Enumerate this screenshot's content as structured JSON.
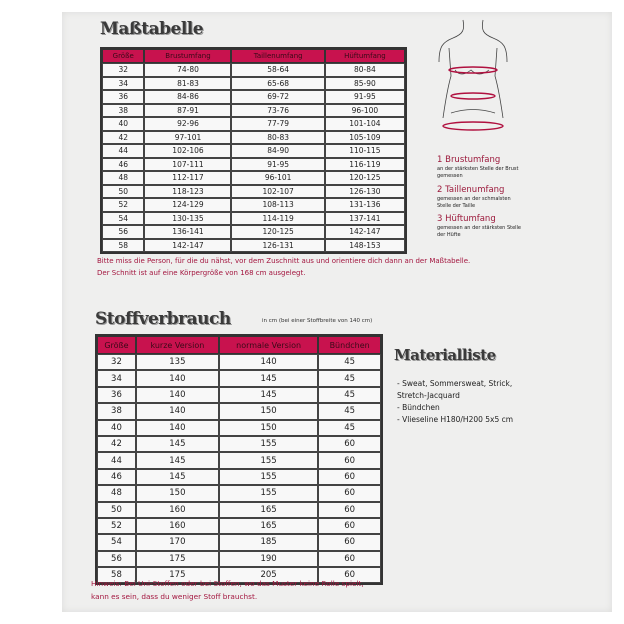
{
  "size_table": {
    "title": "Maßtabelle",
    "headers": [
      "Größe",
      "Brustumfang",
      "Taillenumfang",
      "Hüftumfang"
    ],
    "rows": [
      [
        "32",
        "74-80",
        "58-64",
        "80-84"
      ],
      [
        "34",
        "81-83",
        "65-68",
        "85-90"
      ],
      [
        "36",
        "84-86",
        "69-72",
        "91-95"
      ],
      [
        "38",
        "87-91",
        "73-76",
        "96-100"
      ],
      [
        "40",
        "92-96",
        "77-79",
        "101-104"
      ],
      [
        "42",
        "97-101",
        "80-83",
        "105-109"
      ],
      [
        "44",
        "102-106",
        "84-90",
        "110-115"
      ],
      [
        "46",
        "107-111",
        "91-95",
        "116-119"
      ],
      [
        "48",
        "112-117",
        "96-101",
        "120-125"
      ],
      [
        "50",
        "118-123",
        "102-107",
        "126-130"
      ],
      [
        "52",
        "124-129",
        "108-113",
        "131-136"
      ],
      [
        "54",
        "130-135",
        "114-119",
        "137-141"
      ],
      [
        "56",
        "136-141",
        "120-125",
        "142-147"
      ],
      [
        "58",
        "142-147",
        "126-131",
        "148-153"
      ]
    ],
    "note1": "Bitte miss die Person, für die du nähst, vor dem Zuschnitt aus und orientiere dich dann an der Maßtabelle.",
    "note2": "Der Schnitt ist auf eine Körpergröße von 168 cm ausgelegt."
  },
  "fabric_table": {
    "title": "Stoffverbrauch",
    "subtitle": "in cm (bei einer Stoffbreite von 140 cm)",
    "headers": [
      "Größe",
      "kurze Version",
      "normale Version",
      "Bündchen"
    ],
    "rows": [
      [
        "32",
        "135",
        "140",
        "45"
      ],
      [
        "34",
        "140",
        "145",
        "45"
      ],
      [
        "36",
        "140",
        "145",
        "45"
      ],
      [
        "38",
        "140",
        "150",
        "45"
      ],
      [
        "40",
        "140",
        "150",
        "45"
      ],
      [
        "42",
        "145",
        "155",
        "60"
      ],
      [
        "44",
        "145",
        "155",
        "60"
      ],
      [
        "46",
        "145",
        "155",
        "60"
      ],
      [
        "48",
        "150",
        "155",
        "60"
      ],
      [
        "50",
        "160",
        "165",
        "60"
      ],
      [
        "52",
        "160",
        "165",
        "60"
      ],
      [
        "54",
        "170",
        "185",
        "60"
      ],
      [
        "56",
        "175",
        "190",
        "60"
      ],
      [
        "58",
        "175",
        "205",
        "60"
      ]
    ],
    "hint1": "Hinweis: Bei Uni-Stoffen oder bei Stoffen, wo das Muster keine Rolle spielt,",
    "hint2": "kann es sein, dass du weniger Stoff brauchst."
  },
  "measurements": [
    {
      "title": "1 Brustumfang",
      "desc": "an der stärksten Stelle der Brust gemessen"
    },
    {
      "title": "2 Taillenumfang",
      "desc": "gemessen an der schmalsten Stelle der Taille"
    },
    {
      "title": "3 Hüftumfang",
      "desc": "gemessen an der stärksten Stelle der Hüfte"
    }
  ],
  "materials": {
    "title": "Materialliste",
    "items": [
      "- Sweat, Sommersweat, Strick,",
      "Stretch-Jacquard",
      "- Bündchen",
      "- Vlieseline H180/H200 5x5 cm"
    ]
  },
  "colors": {
    "accent": "#c8124e",
    "text_accent": "#a3163f"
  }
}
